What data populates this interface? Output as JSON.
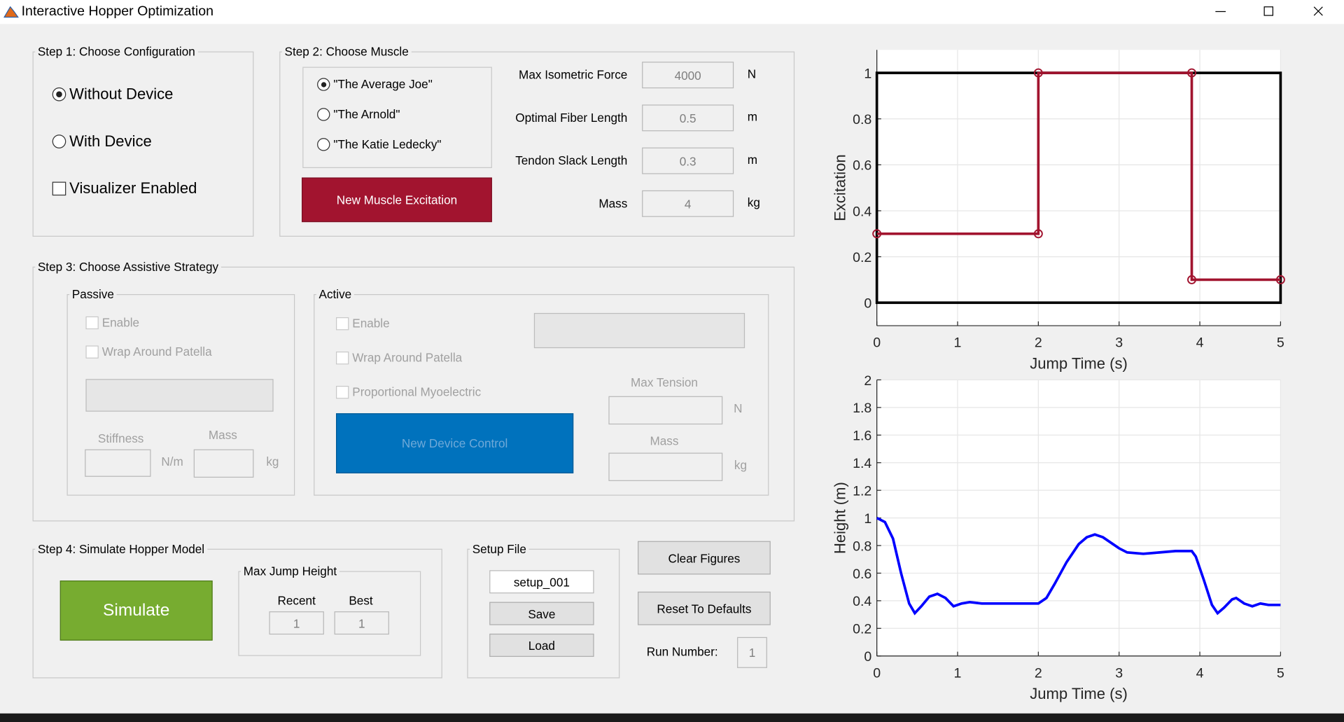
{
  "window": {
    "title": "Interactive Hopper Optimization"
  },
  "step1": {
    "title": "Step 1: Choose Configuration",
    "options": [
      "Without Device",
      "With Device"
    ],
    "selected": 0,
    "visualizer": "Visualizer Enabled"
  },
  "step2": {
    "title": "Step 2: Choose Muscle",
    "muscles": [
      "\"The Average Joe\"",
      "\"The Arnold\"",
      "\"The Katie Ledecky\""
    ],
    "selected": 0,
    "button": "New Muscle Excitation",
    "params": [
      {
        "label": "Max Isometric Force",
        "value": 4000,
        "unit": "N"
      },
      {
        "label": "Optimal Fiber Length",
        "value": 0.5,
        "unit": "m"
      },
      {
        "label": "Tendon Slack Length",
        "value": 0.3,
        "unit": "m"
      },
      {
        "label": "Mass",
        "value": 4,
        "unit": "kg"
      }
    ]
  },
  "step3": {
    "title": "Step 3: Choose Assistive Strategy",
    "passive": {
      "title": "Passive",
      "enable": "Enable",
      "wrap": "Wrap Around Patella",
      "stiffness": "Stiffness",
      "stiffness_unit": "N/m",
      "mass": "Mass",
      "mass_unit": "kg"
    },
    "active": {
      "title": "Active",
      "enable": "Enable",
      "wrap": "Wrap Around Patella",
      "myo": "Proportional Myoelectric",
      "button": "New Device Control",
      "tension": "Max Tension",
      "tension_unit": "N",
      "mass": "Mass",
      "mass_unit": "kg"
    }
  },
  "step4": {
    "title": "Step 4: Simulate Hopper Model",
    "button": "Simulate",
    "jump": {
      "title": "Max Jump Height",
      "recent_label": "Recent",
      "recent": 1,
      "best_label": "Best",
      "best": 1
    }
  },
  "setup": {
    "title": "Setup File",
    "file": "setup_001",
    "save": "Save",
    "load": "Load"
  },
  "actions": {
    "clear": "Clear Figures",
    "reset": "Reset To Defaults",
    "run_label": "Run Number:",
    "run": 1
  },
  "chart_data": [
    {
      "type": "line",
      "xlabel": "Jump Time (s)",
      "ylabel": "Excitation",
      "xlim": [
        0,
        5
      ],
      "ylim": [
        -0.1,
        1.1
      ],
      "xticks": [
        0,
        1,
        2,
        3,
        4,
        5
      ],
      "yticks": [
        0,
        0.2,
        0.4,
        0.6,
        0.8,
        1
      ],
      "grid": true,
      "frame_color": "#000000",
      "x": [
        0,
        2,
        2,
        3.9,
        3.9,
        5
      ],
      "series": [
        {
          "color": "#a2142f",
          "markers": true,
          "values": [
            0.3,
            0.3,
            1,
            1,
            0.1,
            0.1
          ]
        }
      ]
    },
    {
      "type": "line",
      "xlabel": "Jump Time (s)",
      "ylabel": "Height (m)",
      "xlim": [
        0,
        5
      ],
      "ylim": [
        0,
        2
      ],
      "xticks": [
        0,
        1,
        2,
        3,
        4,
        5
      ],
      "yticks": [
        0,
        0.2,
        0.4,
        0.6,
        0.8,
        1,
        1.2,
        1.4,
        1.6,
        1.8,
        2
      ],
      "grid": true,
      "x": [
        0,
        0.1,
        0.2,
        0.3,
        0.4,
        0.47,
        0.55,
        0.65,
        0.75,
        0.85,
        0.95,
        1.05,
        1.15,
        1.3,
        1.5,
        1.8,
        2.0,
        2.1,
        2.2,
        2.35,
        2.5,
        2.6,
        2.7,
        2.8,
        2.9,
        3.0,
        3.1,
        3.3,
        3.5,
        3.7,
        3.9,
        3.95,
        4.05,
        4.15,
        4.22,
        4.3,
        4.4,
        4.45,
        4.55,
        4.65,
        4.75,
        4.85,
        5.0
      ],
      "series": [
        {
          "color": "#0000ff",
          "markers": false,
          "values": [
            1.0,
            0.97,
            0.85,
            0.6,
            0.38,
            0.31,
            0.36,
            0.43,
            0.45,
            0.42,
            0.36,
            0.38,
            0.39,
            0.38,
            0.38,
            0.38,
            0.38,
            0.42,
            0.52,
            0.68,
            0.81,
            0.86,
            0.88,
            0.86,
            0.82,
            0.78,
            0.75,
            0.74,
            0.75,
            0.76,
            0.76,
            0.72,
            0.55,
            0.37,
            0.31,
            0.35,
            0.41,
            0.42,
            0.38,
            0.36,
            0.38,
            0.37,
            0.37
          ]
        }
      ]
    }
  ]
}
